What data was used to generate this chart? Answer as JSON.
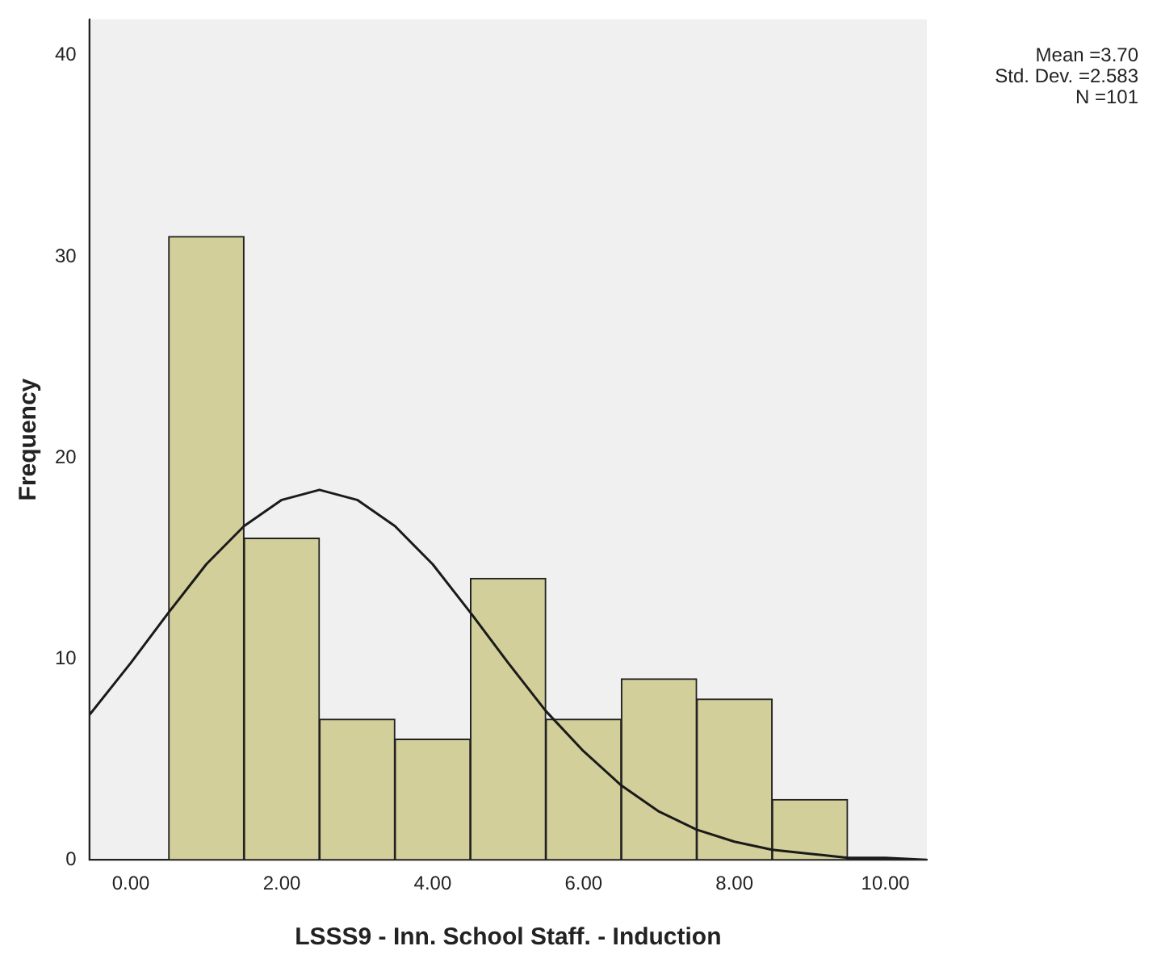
{
  "chart_data": {
    "type": "histogram",
    "xlabel": "LSSS9 - Inn. School Staff. - Induction",
    "ylabel": "Frequency",
    "annotations": [
      "Mean =3.70",
      "Std. Dev. =2.583",
      "N =101"
    ],
    "series": [
      {
        "color": "#d3cf9b",
        "bins": [
          0.5,
          1.5,
          2.5,
          3.5,
          4.5,
          5.5,
          6.5,
          7.5,
          8.5,
          9.5
        ],
        "values": [
          31,
          16,
          7,
          6,
          14,
          7,
          9,
          8,
          3
        ]
      },
      {
        "type": "line",
        "color": "#1a1a1a",
        "x": [
          -0.55,
          0,
          0.5,
          1,
          1.5,
          2,
          2.5,
          3,
          3.5,
          4,
          4.5,
          5,
          5.5,
          6,
          6.5,
          7,
          7.5,
          8,
          8.5,
          9,
          9.5,
          10,
          10.55
        ],
        "values": [
          7.2,
          9.8,
          12.3,
          14.7,
          16.6,
          17.9,
          18.4,
          17.9,
          16.6,
          14.7,
          12.3,
          9.8,
          7.4,
          5.4,
          3.7,
          2.4,
          1.5,
          0.9,
          0.5,
          0.3,
          0.1,
          0.1,
          0
        ]
      }
    ],
    "xlim": [
      -0.55,
      10.55
    ],
    "xticks": [
      {
        "value": 0,
        "label": "0.00"
      },
      {
        "value": 2,
        "label": "2.00"
      },
      {
        "value": 4,
        "label": "4.00"
      },
      {
        "value": 6,
        "label": "6.00"
      },
      {
        "value": 8,
        "label": "8.00"
      },
      {
        "value": 10,
        "label": "10.00"
      }
    ],
    "ylim": [
      0,
      41.8
    ],
    "yticks": [
      0,
      10,
      20,
      30,
      40
    ],
    "grid": false,
    "legend": false,
    "marker": "none"
  }
}
